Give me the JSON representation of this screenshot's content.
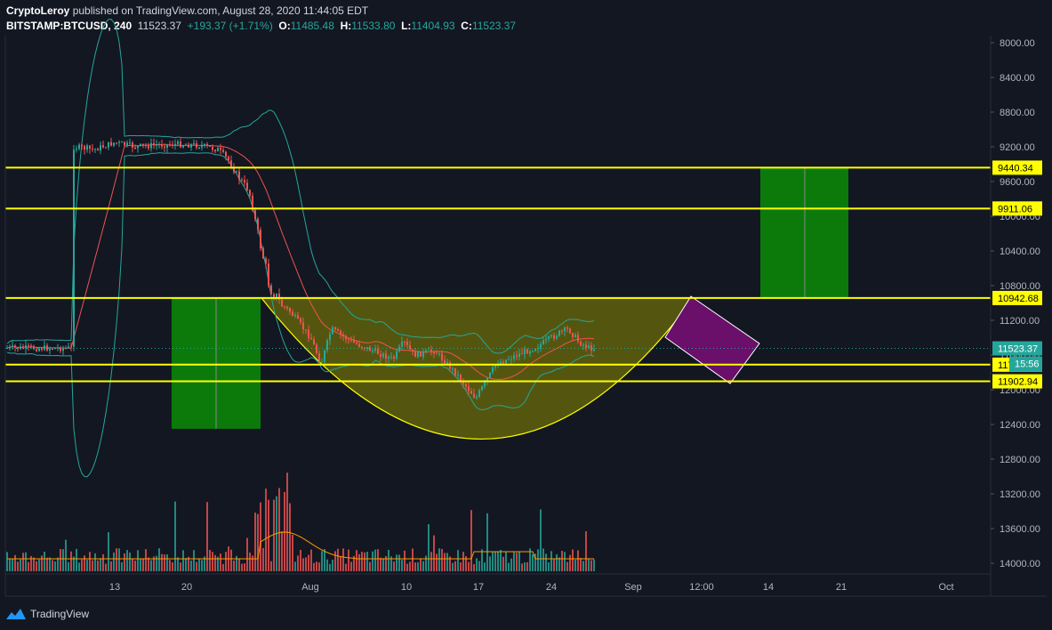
{
  "header": {
    "author": "CryptoLeroy",
    "published_text": "published on TradingView.com, August 28, 2020 11:44:05 EDT",
    "symbol": "BITSTAMP:BTCUSD, 240",
    "last_price": "11523.37",
    "change": "+193.37 (+1.71%)",
    "open_label": "O:",
    "open": "11485.48",
    "high_label": "H:",
    "high": "11533.80",
    "low_label": "L:",
    "low": "11404.93",
    "close_label": "C:",
    "close": "11523.37"
  },
  "footer": {
    "brand": "TradingView"
  },
  "colors": {
    "background": "#131722",
    "up": "#26a69a",
    "down": "#ef5350",
    "level_line": "#ffff00",
    "cup_fill": "#8a8a00",
    "target_box": "#0b7a0b",
    "handle_box": "#6a0f6a",
    "bollinger": "#26a69a",
    "basis": "#ef5350",
    "volume_ma": "#ff9800"
  },
  "chart_data": {
    "type": "candlestick",
    "y_axis": {
      "scale": "inverted",
      "range": [
        8000,
        14100
      ],
      "ticks": [
        "8000.00",
        "8400.00",
        "8800.00",
        "9200.00",
        "9600.00",
        "10000.00",
        "10400.00",
        "10800.00",
        "11200.00",
        "11600.00",
        "12000.00",
        "12400.00",
        "12800.00",
        "13200.00",
        "13600.00",
        "14000.00"
      ]
    },
    "x_axis": {
      "ticks": [
        "13",
        "20",
        "Aug",
        "10",
        "17",
        "24",
        "Sep",
        "12:00",
        "14",
        "21",
        "Oct"
      ]
    },
    "levels": [
      {
        "label": "9440.34",
        "value": 9440.34
      },
      {
        "label": "9911.06",
        "value": 9911.06
      },
      {
        "label": "10942.68",
        "value": 10942.68
      },
      {
        "label": "11710.89",
        "value": 11710.89
      },
      {
        "label": "11902.94",
        "value": 11902.94
      }
    ],
    "last_price_label": "11523.37",
    "countdown_label": "15:56",
    "price_path": [
      [
        "Jul 9",
        9200
      ],
      [
        "Jul 11",
        9230
      ],
      [
        "Jul 13",
        9150
      ],
      [
        "Jul 15",
        9200
      ],
      [
        "Jul 17",
        9180
      ],
      [
        "Jul 19",
        9170
      ],
      [
        "Jul 21",
        9180
      ],
      [
        "Jul 23",
        9230
      ],
      [
        "Jul 24",
        9350
      ],
      [
        "Jul 25",
        9550
      ],
      [
        "Jul 26",
        9700
      ],
      [
        "Jul 27",
        10250
      ],
      [
        "Jul 28",
        10800
      ],
      [
        "Jul 29",
        11000
      ],
      [
        "Jul 30",
        11100
      ],
      [
        "Aug 1",
        11400
      ],
      [
        "Aug 2",
        11700
      ],
      [
        "Aug 3",
        11300
      ],
      [
        "Aug 5",
        11450
      ],
      [
        "Aug 7",
        11550
      ],
      [
        "Aug 9",
        11650
      ],
      [
        "Aug 10",
        11450
      ],
      [
        "Aug 11",
        11600
      ],
      [
        "Aug 13",
        11550
      ],
      [
        "Aug 15",
        11800
      ],
      [
        "Aug 17",
        12100
      ],
      [
        "Aug 18",
        11900
      ],
      [
        "Aug 19",
        11700
      ],
      [
        "Aug 21",
        11600
      ],
      [
        "Aug 23",
        11500
      ],
      [
        "Aug 25",
        11350
      ],
      [
        "Aug 26",
        11300
      ],
      [
        "Aug 27",
        11450
      ],
      [
        "Aug 28",
        11520
      ]
    ]
  }
}
